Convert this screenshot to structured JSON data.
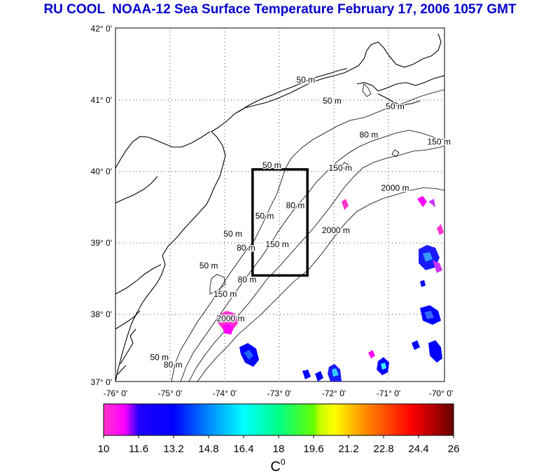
{
  "title": "RU COOL  NOAA-12 Sea Surface Temperature February 17, 2006 1057 GMT",
  "map": {
    "lat_labels": [
      "42° 0'",
      "41° 0'",
      "40° 0'",
      "39° 0'",
      "38° 0'",
      "37° 0'"
    ],
    "lon_labels": [
      "-76° 0'",
      "-75° 0'",
      "-74° 0'",
      "-73° 0'",
      "-72° 0'",
      "-71° 0'",
      "-70° 0'"
    ],
    "lat_range": [
      37,
      42
    ],
    "lon_range": [
      -76,
      -70
    ],
    "grid": "dotted",
    "study_box": {
      "lon": [
        -73.5,
        -72.5
      ],
      "lat": [
        38.5,
        40
      ]
    },
    "contour_labels": [
      {
        "text": "50 m",
        "lon": -72.53,
        "lat": 41.23
      },
      {
        "text": "50 m",
        "lon": -72.05,
        "lat": 40.93
      },
      {
        "text": "50 m",
        "lon": -70.9,
        "lat": 40.85
      },
      {
        "text": "80 m",
        "lon": -71.38,
        "lat": 40.45
      },
      {
        "text": "150 m",
        "lon": -70.1,
        "lat": 40.35
      },
      {
        "text": "150 m",
        "lon": -71.9,
        "lat": 39.98
      },
      {
        "text": "50 m",
        "lon": -73.15,
        "lat": 40.02
      },
      {
        "text": "2000 m",
        "lon": -70.9,
        "lat": 39.7
      },
      {
        "text": "80 m",
        "lon": -72.72,
        "lat": 39.45
      },
      {
        "text": "50 m",
        "lon": -73.28,
        "lat": 39.3
      },
      {
        "text": "2000 m",
        "lon": -71.98,
        "lat": 39.1
      },
      {
        "text": "50 m",
        "lon": -73.86,
        "lat": 39.05
      },
      {
        "text": "150 m",
        "lon": -73.05,
        "lat": 38.9
      },
      {
        "text": "80 m",
        "lon": -73.62,
        "lat": 38.85
      },
      {
        "text": "50 m",
        "lon": -74.3,
        "lat": 38.6
      },
      {
        "text": "80 m",
        "lon": -73.6,
        "lat": 38.4
      },
      {
        "text": "150 m",
        "lon": -74.0,
        "lat": 38.2
      },
      {
        "text": "2000 m",
        "lon": -73.9,
        "lat": 37.85
      },
      {
        "text": "50 m",
        "lon": -75.2,
        "lat": 37.3
      },
      {
        "text": "80 m",
        "lon": -74.95,
        "lat": 37.2
      }
    ]
  },
  "colorbar": {
    "ticks": [
      "10",
      "11.6",
      "13.2",
      "14.8",
      "16.4",
      "18",
      "19.6",
      "21.2",
      "22.8",
      "24.4",
      "26"
    ],
    "range": [
      10,
      26
    ],
    "unit": "C",
    "unit_superscript": "0",
    "colors": [
      "#ff33cc",
      "#ff00ff",
      "#0000ff",
      "#0088ff",
      "#00ffff",
      "#00ff88",
      "#88ff00",
      "#ffff00",
      "#ff8800",
      "#ff0000",
      "#880000"
    ]
  }
}
